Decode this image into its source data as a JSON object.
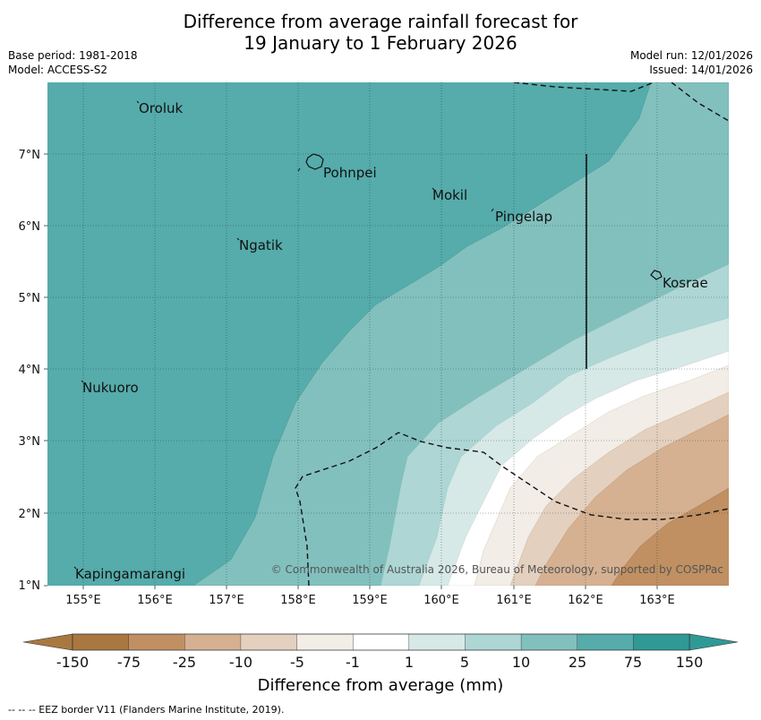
{
  "title_line1": "Difference from average rainfall forecast for",
  "title_line2": "19 January to 1 February 2026",
  "base_period": "Base period: 1981-2018",
  "model": "Model: ACCESS-S2",
  "model_run": "Model run: 12/01/2026",
  "issued": "Issued: 14/01/2026",
  "copyright": "© Commonwealth of Australia 2026, Bureau of Meteorology, supported by COSPPac",
  "places": [
    "Oroluk",
    "Pohnpei",
    "Mokil",
    "Pingelap",
    "Ngatik",
    "Kosrae",
    "Nukuoro",
    "Kapingamarangi"
  ],
  "lat_ticks": [
    "7°N",
    "6°N",
    "5°N",
    "4°N",
    "3°N",
    "2°N",
    "1°N"
  ],
  "lon_ticks": [
    "155°E",
    "156°E",
    "157°E",
    "158°E",
    "159°E",
    "160°E",
    "161°E",
    "162°E",
    "163°E"
  ],
  "colorbar": {
    "title": "Difference from average (mm)",
    "labels": [
      "-150",
      "-75",
      "-25",
      "-10",
      "-5",
      "-1",
      "1",
      "5",
      "10",
      "25",
      "75",
      "150"
    ],
    "colors": [
      "#a97840",
      "#c09062",
      "#d5b192",
      "#e4d0be",
      "#f2ede6",
      "#ffffff",
      "#d6e9e7",
      "#add6d4",
      "#82c0be",
      "#56abab",
      "#2f9996"
    ]
  },
  "footer": "--  --  -- EEZ border V11 (Flanders Marine Institute, 2019)."
}
